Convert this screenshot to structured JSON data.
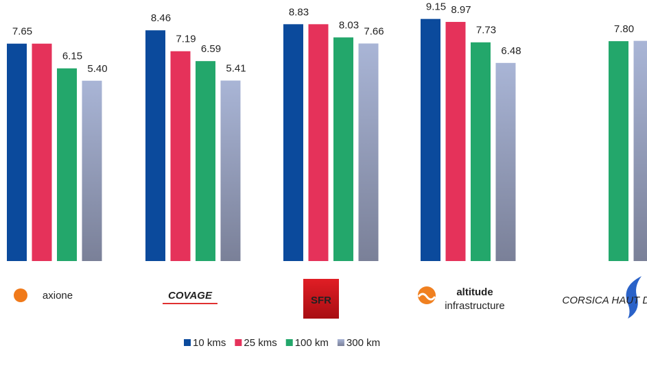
{
  "chart_data": {
    "type": "bar",
    "categories": [
      "axione",
      "COVAGE",
      "SFR",
      "altitude",
      "CORSICA HAUT DEBIT"
    ],
    "category_taglines": [
      null,
      null,
      null,
      "infrastructure",
      null
    ],
    "series": [
      {
        "name": "10 kms",
        "color": "#0b4a9c",
        "values": [
          7.65,
          8.46,
          8.83,
          9.15,
          null
        ],
        "value_labels": [
          "7.65",
          "8.46",
          "8.83",
          "9.15",
          null
        ]
      },
      {
        "name": "25 kms",
        "color": "#e5325a",
        "values": [
          7.65,
          7.19,
          8.83,
          8.97,
          null
        ],
        "value_labels": [
          null,
          "7.19",
          null,
          "8.97",
          null
        ]
      },
      {
        "name": "100 km",
        "color": "#23a76b",
        "values": [
          6.15,
          6.59,
          8.03,
          7.73,
          7.8
        ],
        "value_labels": [
          "6.15",
          "6.59",
          "8.03",
          "7.73",
          "7.80"
        ]
      },
      {
        "name": "300 km",
        "color": "#9aa6c8",
        "values": [
          5.4,
          5.41,
          7.66,
          6.48,
          7.82
        ],
        "value_labels": [
          "5.40",
          "5.41",
          "7.66",
          "6.48",
          null
        ]
      }
    ],
    "ylim": [
      -5.55,
      10.3
    ],
    "legend": "bottom"
  }
}
